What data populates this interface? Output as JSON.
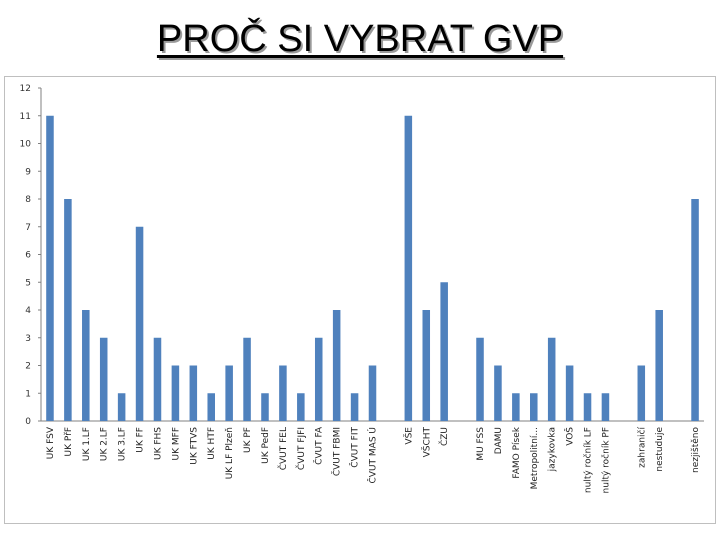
{
  "slide": {
    "title": "PROČ SI VYBRAT GVP"
  },
  "chart_data": {
    "type": "bar",
    "title": "",
    "xlabel": "",
    "ylabel": "",
    "ylim": [
      0,
      12
    ],
    "yticks": [
      0,
      1,
      2,
      3,
      4,
      5,
      6,
      7,
      8,
      9,
      10,
      11,
      12
    ],
    "grid": false,
    "legend": "none",
    "bar_color": "#4f81bd",
    "categories": [
      "UK FSV",
      "UK PřF",
      "UK 1.LF",
      "UK 2.LF",
      "UK 3.LF",
      "UK FF",
      "UK FHS",
      "UK MFF",
      "UK FTVS",
      "UK HTF",
      "UK LF Plzeň",
      "UK PF",
      "UK PedF",
      "ČVUT FEL",
      "ČVUT FJFI",
      "ČVUT FA",
      "ČVUT FBMI",
      "ČVUT FIT",
      "ČVUT MAS Ú",
      "",
      "VŠE",
      "VŠCHT",
      "ČZU",
      "",
      "MU FSS",
      "DAMU",
      "FAMO Písek",
      "Metropolitní...",
      "jazykovka",
      "VOŠ",
      "nultý ročník LF",
      "nultý ročník PF",
      "",
      "zahraničí",
      "nestuduje",
      "",
      "nezjištěno"
    ],
    "values": [
      11,
      8,
      4,
      3,
      1,
      7,
      3,
      2,
      2,
      1,
      2,
      3,
      1,
      2,
      1,
      3,
      4,
      1,
      2,
      null,
      11,
      4,
      5,
      null,
      3,
      2,
      1,
      1,
      3,
      2,
      1,
      1,
      null,
      2,
      4,
      null,
      8
    ]
  }
}
